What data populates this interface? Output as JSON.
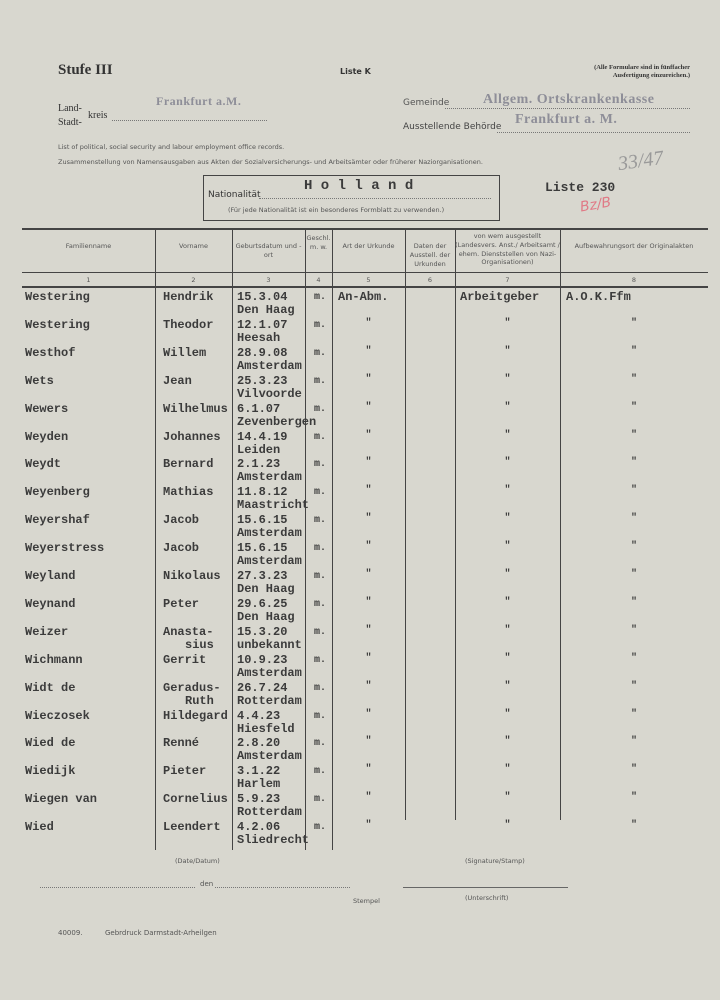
{
  "header": {
    "level": "Stufe III",
    "list_form": "Liste K",
    "note": "(Alle Formulare sind in fünffacher Ausfertigung einzureichen.)",
    "land_label": "Land-",
    "stadt_label": "Stadt-",
    "kreis_label": "kreis",
    "kreis_value": "Frankfurt a.M.",
    "gemeinde_label": "Gemeinde",
    "gemeinde_value": "Allgem. Ortskrankenkasse",
    "behoerde_label": "Ausstellende Behörde",
    "behoerde_value": "Frankfurt a. M.",
    "desc_en": "List of political, social security and labour employment office records.",
    "desc_de": "Zusammenstellung von Namensausgaben aus Akten der Sozialversicherungs- und Arbeitsämter oder früherer Naziorganisationen.",
    "handwritten_ref": "33/47",
    "handwritten_red": "Bz/B",
    "nationality_label": "Nationalität",
    "nationality_value": "H o l l a n d",
    "nationality_note": "(Für jede Nationalität ist ein besonderes Formblatt zu verwenden.)",
    "list_label": "Liste 230"
  },
  "table": {
    "columns": [
      {
        "label": "Familienname",
        "num": "1"
      },
      {
        "label": "Vorname",
        "num": "2"
      },
      {
        "label": "Geburtsdatum und -ort",
        "num": "3"
      },
      {
        "label": "Geschl. m. w.",
        "num": "4"
      },
      {
        "label": "Art der Urkunde",
        "num": "5"
      },
      {
        "label": "Daten der Ausstell. der Urkunden",
        "num": "6"
      },
      {
        "label": "von wem ausgestellt (Landesvers. Anst./ Arbeitsamt / ehem. Dienststellen von Nazi-Organisationen)",
        "num": "7"
      },
      {
        "label": "Aufbewahrungsort der Originalakten",
        "num": "8"
      }
    ],
    "rows": [
      {
        "surname": "Westering",
        "first": "Hendrik",
        "first2": "",
        "date": "15.3.04",
        "place": "Den Haag",
        "sex": "m.",
        "doc": "An-Abm.",
        "issuer": "Arbeitgeber",
        "archive": "A.O.K.Ffm"
      },
      {
        "surname": "Westering",
        "first": "Theodor",
        "first2": "",
        "date": "12.1.07",
        "place": "Heesah",
        "sex": "m.",
        "doc": "\"",
        "issuer": "\"",
        "archive": "\""
      },
      {
        "surname": "Westhof",
        "first": "Willem",
        "first2": "",
        "date": "28.9.08",
        "place": "Amsterdam",
        "sex": "m.",
        "doc": "\"",
        "issuer": "\"",
        "archive": "\""
      },
      {
        "surname": "Wets",
        "first": "Jean",
        "first2": "",
        "date": "25.3.23",
        "place": "Vilvoorde",
        "sex": "m.",
        "doc": "\"",
        "issuer": "\"",
        "archive": "\""
      },
      {
        "surname": "Wewers",
        "first": "Wilhelmus",
        "first2": "",
        "date": "6.1.07",
        "place": "Zevenbergen",
        "sex": "m.",
        "doc": "\"",
        "issuer": "\"",
        "archive": "\""
      },
      {
        "surname": "Weyden",
        "first": "Johannes",
        "first2": "",
        "date": "14.4.19",
        "place": "Leiden",
        "sex": "m.",
        "doc": "\"",
        "issuer": "\"",
        "archive": "\""
      },
      {
        "surname": "Weydt",
        "first": "Bernard",
        "first2": "",
        "date": "2.1.23",
        "place": "Amsterdam",
        "sex": "m.",
        "doc": "\"",
        "issuer": "\"",
        "archive": "\""
      },
      {
        "surname": "Weyenberg",
        "first": "Mathias",
        "first2": "",
        "date": "11.8.12",
        "place": "Maastricht",
        "sex": "m.",
        "doc": "\"",
        "issuer": "\"",
        "archive": "\""
      },
      {
        "surname": "Weyershaf",
        "first": "Jacob",
        "first2": "",
        "date": "15.6.15",
        "place": "Amsterdam",
        "sex": "m.",
        "doc": "\"",
        "issuer": "\"",
        "archive": "\""
      },
      {
        "surname": "Weyerstress",
        "first": "Jacob",
        "first2": "",
        "date": "15.6.15",
        "place": "Amsterdam",
        "sex": "m.",
        "doc": "\"",
        "issuer": "\"",
        "archive": "\""
      },
      {
        "surname": "Weyland",
        "first": "Nikolaus",
        "first2": "",
        "date": "27.3.23",
        "place": "Den Haag",
        "sex": "m.",
        "doc": "\"",
        "issuer": "\"",
        "archive": "\""
      },
      {
        "surname": "Weynand",
        "first": "Peter",
        "first2": "",
        "date": "29.6.25",
        "place": "Den Haag",
        "sex": "m.",
        "doc": "\"",
        "issuer": "\"",
        "archive": "\""
      },
      {
        "surname": "Weizer",
        "first": "Anasta-",
        "first2": "sius",
        "date": "15.3.20",
        "place": "unbekannt",
        "sex": "m.",
        "doc": "\"",
        "issuer": "\"",
        "archive": "\""
      },
      {
        "surname": "Wichmann",
        "first": "Gerrit",
        "first2": "",
        "date": "10.9.23",
        "place": "Amsterdam",
        "sex": "m.",
        "doc": "\"",
        "issuer": "\"",
        "archive": "\""
      },
      {
        "surname": "Widt  de",
        "first": "Geradus-",
        "first2": "Ruth",
        "date": "26.7.24",
        "place": "Rotterdam",
        "sex": "m.",
        "doc": "\"",
        "issuer": "\"",
        "archive": "\""
      },
      {
        "surname": "Wieczosek",
        "first": "Hildegard",
        "first2": "",
        "date": "4.4.23",
        "place": "Hiesfeld",
        "sex": "m.",
        "doc": "\"",
        "issuer": "\"",
        "archive": "\""
      },
      {
        "surname": "Wied  de",
        "first": "Renné",
        "first2": "",
        "date": "2.8.20",
        "place": "Amsterdam",
        "sex": "m.",
        "doc": "\"",
        "issuer": "\"",
        "archive": "\""
      },
      {
        "surname": "Wiedijk",
        "first": "Pieter",
        "first2": "",
        "date": "3.1.22",
        "place": "Harlem",
        "sex": "m.",
        "doc": "\"",
        "issuer": "\"",
        "archive": "\""
      },
      {
        "surname": "Wiegen van",
        "first": "Cornelius",
        "first2": "",
        "date": "5.9.23",
        "place": "Rotterdam",
        "sex": "m.",
        "doc": "\"",
        "issuer": "\"",
        "archive": "\""
      },
      {
        "surname": "Wied",
        "first": "Leendert",
        "first2": "",
        "date": "4.2.06",
        "place": "Sliedrecht",
        "sex": "m.",
        "doc": "\"",
        "issuer": "\"",
        "archive": "\""
      }
    ]
  },
  "footer": {
    "date_label": "(Date/Datum)",
    "signature_stamp_label": "(Signature/Stamp)",
    "den_label": "den",
    "stempel_label": "Stempel",
    "unterschrift_label": "(Unterschrift)",
    "form_number": "40009.",
    "printer": "Gebrdruck  Darmstadt-Arheilgen"
  }
}
